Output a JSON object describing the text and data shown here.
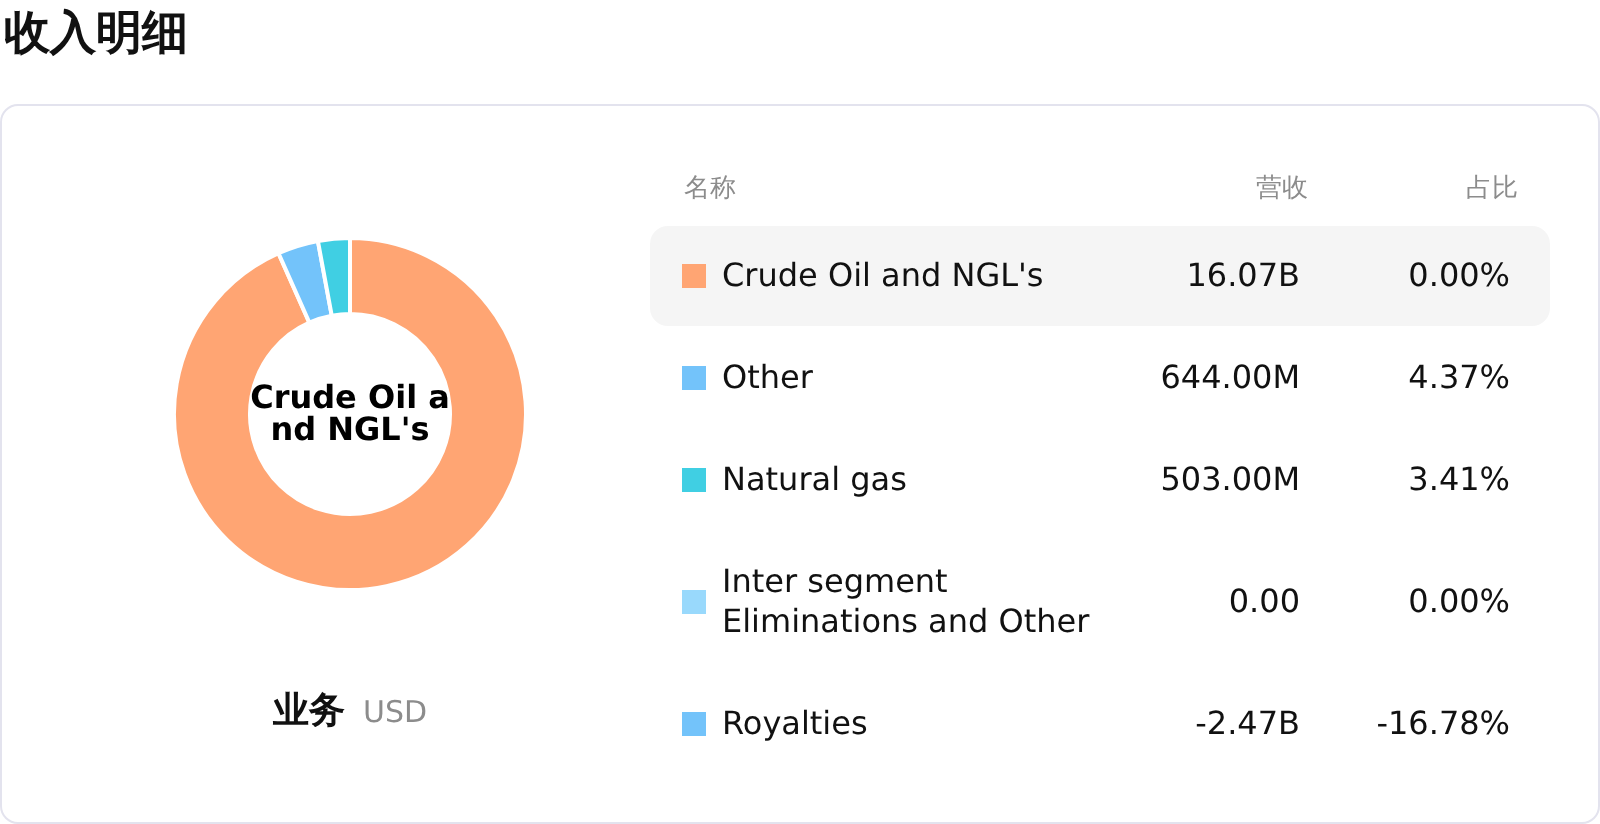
{
  "chart_data": {
    "type": "donut",
    "title": "收入明细",
    "xlabel": "业务",
    "legend": "right",
    "legend_title": "名称",
    "categories": [
      "Crude Oil and NGL's",
      "Other",
      "Natural gas",
      "Inter segment Eliminations and Other",
      "Royalties"
    ],
    "values": [
      16070000000,
      644000000,
      503000000,
      0,
      null
    ],
    "value_labels": [
      "16.07B",
      "644.00M",
      "503.00M",
      "0.00",
      "-2.47B"
    ],
    "colors": [
      "#ffa573",
      "#73c3fa",
      "#40cfe3",
      "#99d9fc",
      "#73c3fa"
    ],
    "annotations": [
      "USD",
      "营收",
      "占比",
      "0.00%",
      "4.37%",
      "3.41%",
      "0.00%",
      "-16.78%"
    ]
  }
}
